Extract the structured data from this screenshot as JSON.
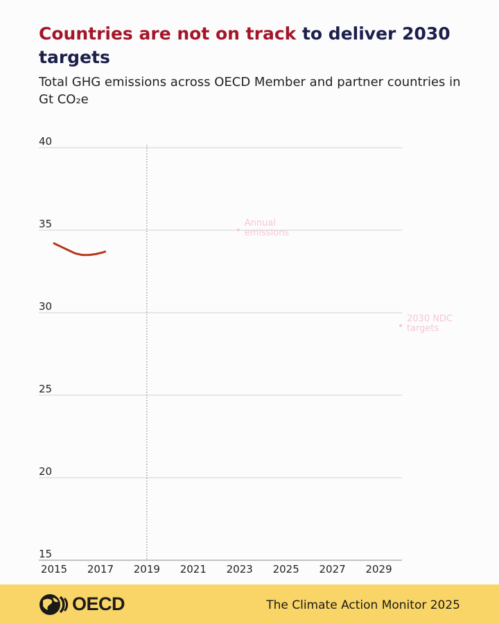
{
  "header": {
    "title_highlight": "Countries are not on track",
    "title_rest": " to deliver 2030 targets",
    "subtitle": "Total GHG emissions across OECD Member and partner countries in Gt CO₂e"
  },
  "chart_data": {
    "type": "line",
    "title": "Countries are not on track to deliver 2030 targets",
    "subtitle": "Total GHG emissions across OECD Member and partner countries in Gt CO₂e",
    "xlabel": "",
    "ylabel": "",
    "xlim": [
      2015,
      2030
    ],
    "ylim": [
      15,
      40
    ],
    "x_ticks": [
      2015,
      2017,
      2019,
      2021,
      2023,
      2025,
      2027,
      2029
    ],
    "y_ticks": [
      15,
      20,
      25,
      30,
      35,
      40
    ],
    "grid": "horizontal",
    "reference_line": {
      "x": 2019,
      "style": "dotted"
    },
    "series": [
      {
        "name": "",
        "color": "#b5361c",
        "x": [
          2015.0,
          2015.3,
          2015.6,
          2015.9,
          2016.2,
          2016.5,
          2016.8,
          2017.1,
          2017.2
        ],
        "y": [
          34.2,
          34.0,
          33.8,
          33.6,
          33.5,
          33.5,
          33.55,
          33.65,
          33.7
        ]
      }
    ],
    "annotations": [
      {
        "text_lines": [
          "Annual",
          "emissions"
        ],
        "x": 2023.0,
        "y": 35.1,
        "color": "#f4c7d3"
      },
      {
        "text_lines": [
          "2030 NDC",
          "targets"
        ],
        "x": 2030.0,
        "y": 29.3,
        "color": "#f4c7d3"
      }
    ]
  },
  "footer": {
    "logo_text": "OECD",
    "publication": "The Climate Action Monitor 2025"
  }
}
